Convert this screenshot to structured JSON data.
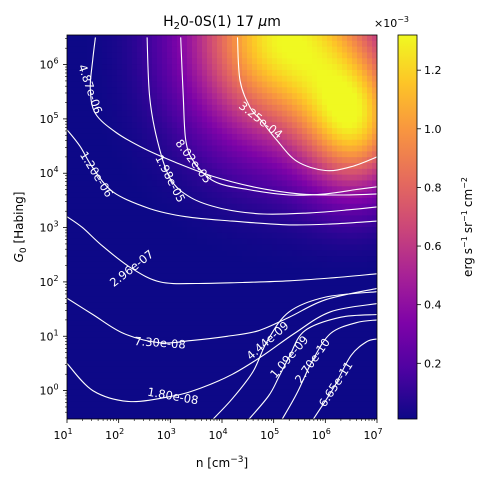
{
  "chart_data": {
    "type": "heatmap",
    "title": {
      "pre": "H",
      "sub": "2",
      "post": "0-0S(1) 17 ",
      "mu": "μ",
      "unit": "m"
    },
    "xlabel": {
      "pre": "n [cm",
      "sup": "−3",
      "post": "]"
    },
    "ylabel": {
      "pre": "G",
      "sub": "0",
      "post": " [Habing]"
    },
    "x_scale": "log",
    "y_scale": "log",
    "xlim": [
      10,
      10000000
    ],
    "ylim": [
      0.3,
      3500000
    ],
    "x_ticks": [
      {
        "value": 10,
        "base": "10",
        "exp": "1"
      },
      {
        "value": 100,
        "base": "10",
        "exp": "2"
      },
      {
        "value": 1000,
        "base": "10",
        "exp": "3"
      },
      {
        "value": 10000,
        "base": "10",
        "exp": "4"
      },
      {
        "value": 100000,
        "base": "10",
        "exp": "5"
      },
      {
        "value": 1000000,
        "base": "10",
        "exp": "6"
      },
      {
        "value": 10000000,
        "base": "10",
        "exp": "7"
      }
    ],
    "y_ticks": [
      {
        "value": 1,
        "base": "10",
        "exp": "0"
      },
      {
        "value": 10,
        "base": "10",
        "exp": "1"
      },
      {
        "value": 100,
        "base": "10",
        "exp": "2"
      },
      {
        "value": 1000,
        "base": "10",
        "exp": "3"
      },
      {
        "value": 10000,
        "base": "10",
        "exp": "4"
      },
      {
        "value": 100000,
        "base": "10",
        "exp": "5"
      },
      {
        "value": 1000000,
        "base": "10",
        "exp": "6"
      }
    ],
    "colormap": "plasma",
    "colorbar": {
      "range": [
        1e-05,
        0.00132
      ],
      "multiplier": {
        "base": "×10",
        "exp": "−3"
      },
      "label": {
        "a": "erg",
        "b": "s",
        "b_sup": "−1",
        "c": "sr",
        "c_sup": "−1",
        "d": "cm",
        "d_sup": "−2"
      },
      "ticks": [
        {
          "value": 0.0002,
          "label": "0.2"
        },
        {
          "value": 0.0004,
          "label": "0.4"
        },
        {
          "value": 0.0006,
          "label": "0.6"
        },
        {
          "value": 0.0008,
          "label": "0.8"
        },
        {
          "value": 0.001,
          "label": "1.0"
        },
        {
          "value": 0.0012,
          "label": "1.2"
        }
      ]
    },
    "intensity_field": {
      "description_units": "erg s^-1 sr^-1 cm^-2",
      "peak_log_n": 5.2,
      "peak_log_G0": 6.5,
      "peak_value": 0.0013
    },
    "contours": [
      {
        "label": "4.87e-06",
        "label_at": [
          1.45,
          5.55
        ],
        "label_angle": 71,
        "points": [
          [
            1.55,
            6.5
          ],
          [
            1.5,
            6.1
          ],
          [
            1.45,
            5.55
          ],
          [
            1.55,
            5.1
          ],
          [
            1.95,
            4.75
          ],
          [
            2.5,
            4.45
          ],
          [
            3.1,
            4.2
          ],
          [
            3.8,
            3.95
          ],
          [
            4.6,
            3.75
          ],
          [
            5.5,
            3.62
          ],
          [
            6.3,
            3.6
          ],
          [
            7,
            3.62
          ]
        ]
      },
      {
        "label": "1.20e-06",
        "label_at": [
          1.57,
          3.98
        ],
        "label_angle": 58,
        "points": [
          [
            1,
            4.8
          ],
          [
            1.25,
            4.5
          ],
          [
            1.5,
            4.1
          ],
          [
            1.9,
            3.65
          ],
          [
            2.6,
            3.35
          ],
          [
            3.3,
            3.2
          ],
          [
            4.2,
            3.12
          ],
          [
            5.3,
            3.05
          ],
          [
            6.2,
            3.07
          ],
          [
            7,
            3.12
          ]
        ]
      },
      {
        "label": "2.96e-07",
        "label_at": [
          2.25,
          2.25
        ],
        "label_angle": -38,
        "points": [
          [
            1,
            3.2
          ],
          [
            1.3,
            3.0
          ],
          [
            1.7,
            2.65
          ],
          [
            2.25,
            2.25
          ],
          [
            2.8,
            2.0
          ],
          [
            3.5,
            1.97
          ],
          [
            4.4,
            1.99
          ],
          [
            5.3,
            2.02
          ],
          [
            6.2,
            2.08
          ],
          [
            7,
            2.15
          ]
        ]
      },
      {
        "label": "7.30e-08",
        "label_at": [
          2.8,
          0.88
        ],
        "label_angle": 4,
        "points": [
          [
            1,
            1.7
          ],
          [
            1.5,
            1.4
          ],
          [
            2.1,
            1.05
          ],
          [
            2.8,
            0.88
          ],
          [
            3.4,
            0.92
          ],
          [
            4.1,
            1.0
          ],
          [
            4.7,
            1.1
          ],
          [
            5.3,
            1.35
          ],
          [
            6.0,
            1.67
          ],
          [
            7,
            1.88
          ]
        ]
      },
      {
        "label": "1.80e-08",
        "label_at": [
          3.05,
          -0.1
        ],
        "label_angle": 10,
        "points": [
          [
            1,
            0.5
          ],
          [
            1.5,
            0.0
          ],
          [
            2.2,
            -0.2
          ],
          [
            3.05,
            -0.1
          ],
          [
            3.6,
            0.05
          ],
          [
            4.2,
            0.3
          ],
          [
            4.8,
            0.65
          ],
          [
            5.4,
            1.05
          ],
          [
            6.1,
            1.45
          ],
          [
            7,
            1.6
          ]
        ]
      },
      {
        "label": "4.44e-09",
        "label_at": [
          4.88,
          0.92
        ],
        "label_angle": -41,
        "points": [
          [
            3.8,
            -0.55
          ],
          [
            4.2,
            -0.15
          ],
          [
            4.6,
            0.35
          ],
          [
            4.88,
            0.92
          ],
          [
            5.3,
            1.45
          ],
          [
            6.0,
            1.72
          ],
          [
            7,
            1.82
          ]
        ]
      },
      {
        "label": "1.09e-09",
        "label_at": [
          5.3,
          0.62
        ],
        "label_angle": -49,
        "points": [
          [
            4.5,
            -0.55
          ],
          [
            4.9,
            -0.1
          ],
          [
            5.1,
            0.25
          ],
          [
            5.3,
            0.62
          ],
          [
            5.6,
            1.1
          ],
          [
            6.3,
            1.35
          ],
          [
            7,
            1.4
          ]
        ]
      },
      {
        "label": "2.70e-10",
        "label_at": [
          5.75,
          0.55
        ],
        "label_angle": -55,
        "points": [
          [
            5.15,
            -0.55
          ],
          [
            5.45,
            -0.05
          ],
          [
            5.75,
            0.55
          ],
          [
            6.1,
            1.05
          ],
          [
            6.6,
            1.25
          ],
          [
            7,
            1.3
          ]
        ]
      },
      {
        "label": "6.65e-11",
        "label_at": [
          6.2,
          0.12
        ],
        "label_angle": -57,
        "points": [
          [
            5.75,
            -0.55
          ],
          [
            6.05,
            -0.12
          ],
          [
            6.2,
            0.12
          ],
          [
            6.5,
            0.65
          ],
          [
            6.8,
            0.9
          ],
          [
            7,
            0.95
          ]
        ]
      },
      {
        "label": "1.98e-05",
        "label_at": [
          3.0,
          3.9
        ],
        "label_angle": 63,
        "points": [
          [
            2.55,
            6.5
          ],
          [
            2.6,
            5.4
          ],
          [
            2.75,
            4.6
          ],
          [
            3.0,
            3.9
          ],
          [
            3.4,
            3.55
          ],
          [
            4.0,
            3.35
          ],
          [
            4.8,
            3.25
          ],
          [
            5.7,
            3.27
          ],
          [
            6.5,
            3.33
          ],
          [
            7,
            3.38
          ]
        ]
      },
      {
        "label": "8.02e-05",
        "label_at": [
          3.45,
          4.22
        ],
        "label_angle": 53,
        "points": [
          [
            3.2,
            6.5
          ],
          [
            3.25,
            5.4
          ],
          [
            3.3,
            4.6
          ],
          [
            3.45,
            4.22
          ],
          [
            3.85,
            3.85
          ],
          [
            4.5,
            3.7
          ],
          [
            5.3,
            3.6
          ],
          [
            6.0,
            3.62
          ],
          [
            6.6,
            3.7
          ],
          [
            7,
            3.75
          ]
        ]
      },
      {
        "label": "3.25e-04",
        "label_at": [
          4.75,
          4.98
        ],
        "label_angle": 38,
        "points": [
          [
            4.3,
            6.5
          ],
          [
            4.35,
            5.7
          ],
          [
            4.55,
            5.2
          ],
          [
            4.75,
            4.98
          ],
          [
            5.05,
            4.62
          ],
          [
            5.45,
            4.22
          ],
          [
            6.0,
            4.05
          ],
          [
            6.5,
            4.12
          ],
          [
            7,
            4.3
          ]
        ]
      }
    ]
  }
}
